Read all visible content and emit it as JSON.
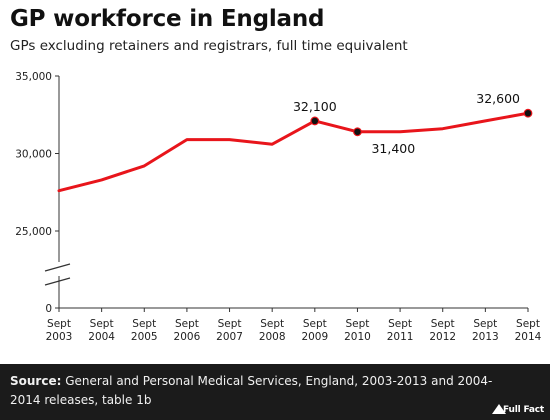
{
  "chart_data": {
    "type": "line",
    "title": "GP workforce in England",
    "subtitle": "GPs excluding retainers and registrars, full time equivalent",
    "xlabel": "",
    "ylabel": "",
    "y_axis_break": true,
    "ylim": [
      0,
      35000
    ],
    "y_ticks": [
      0,
      25000,
      30000,
      35000
    ],
    "y_tick_labels": [
      "0",
      "25,000",
      "30,000",
      "35,000"
    ],
    "grid": false,
    "legend": "none",
    "line_color": "#e8151b",
    "categories": [
      "Sept 2003",
      "Sept 2004",
      "Sept 2005",
      "Sept 2006",
      "Sept 2007",
      "Sept 2008",
      "Sept 2009",
      "Sept 2010",
      "Sept 2011",
      "Sept 2012",
      "Sept 2013",
      "Sept 2014"
    ],
    "x_tick_lines": [
      [
        "Sept",
        "2003"
      ],
      [
        "Sept",
        "2004"
      ],
      [
        "Sept",
        "2005"
      ],
      [
        "Sept",
        "2006"
      ],
      [
        "Sept",
        "2007"
      ],
      [
        "Sept",
        "2008"
      ],
      [
        "Sept",
        "2009"
      ],
      [
        "Sept",
        "2010"
      ],
      [
        "Sept",
        "2011"
      ],
      [
        "Sept",
        "2012"
      ],
      [
        "Sept",
        "2013"
      ],
      [
        "Sept",
        "2014"
      ]
    ],
    "series": [
      {
        "values": [
          27600,
          28300,
          29200,
          30900,
          30900,
          30600,
          32100,
          31400,
          31400,
          31600,
          32100,
          32600
        ]
      }
    ],
    "annotations": [
      {
        "index": 6,
        "label": "32,100",
        "side": "above"
      },
      {
        "index": 7,
        "label": "31,400",
        "side": "below-right"
      },
      {
        "index": 11,
        "label": "32,600",
        "side": "above-left"
      }
    ]
  },
  "footer": {
    "source_label": "Source:",
    "source_text": " General and Personal Medical Services, England, 2003-2013 and 2004-2014 releases, table 1b",
    "brand": "Full Fact"
  }
}
